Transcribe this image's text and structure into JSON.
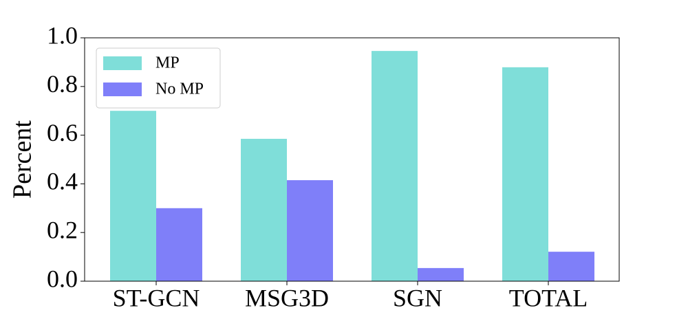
{
  "chart_data": {
    "type": "bar",
    "categories": [
      "ST-GCN",
      "MSG3D",
      "SGN",
      "TOTAL"
    ],
    "y_label": "Percent",
    "series": [
      {
        "name": "MP",
        "color": "#7fded9",
        "values": [
          0.7,
          0.585,
          0.946,
          0.879
        ]
      },
      {
        "name": "No MP",
        "color": "#7f7ff9",
        "values": [
          0.3,
          0.415,
          0.054,
          0.121
        ]
      }
    ],
    "ylim": [
      0,
      1.0
    ],
    "yticks": [
      {
        "value": 0,
        "label": "0.0"
      },
      0.2,
      0.4,
      0.6,
      0.8,
      {
        "value": 1.0,
        "label": "1.0"
      }
    ],
    "grid": false,
    "legend": "upper-left"
  }
}
